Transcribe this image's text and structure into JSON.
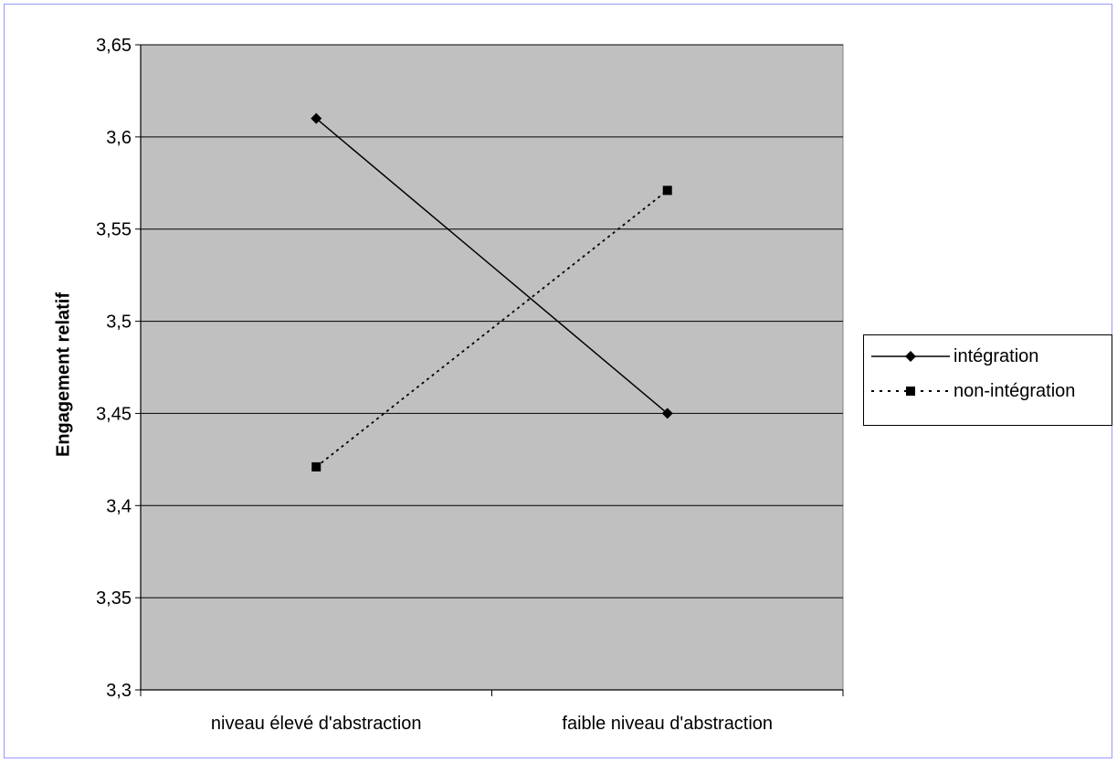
{
  "chart_data": {
    "type": "line",
    "categories": [
      "niveau élevé d'abstraction",
      "faible niveau d'abstraction"
    ],
    "series": [
      {
        "name": "intégration",
        "values": [
          3.61,
          3.45
        ],
        "line_style": "solid",
        "marker": "diamond",
        "color": "#000000"
      },
      {
        "name": "non-intégration",
        "values": [
          3.421,
          3.571
        ],
        "line_style": "dotted",
        "marker": "square",
        "color": "#000000"
      }
    ],
    "ylabel": "Engagement relatif",
    "xlabel": "",
    "ylim": [
      3.3,
      3.65
    ],
    "yticks": [
      "3,3",
      "3,35",
      "3,4",
      "3,45",
      "3,5",
      "3,55",
      "3,6",
      "3,65"
    ],
    "grid": true,
    "legend_position": "right",
    "plot_background": "#c0c0c0"
  }
}
